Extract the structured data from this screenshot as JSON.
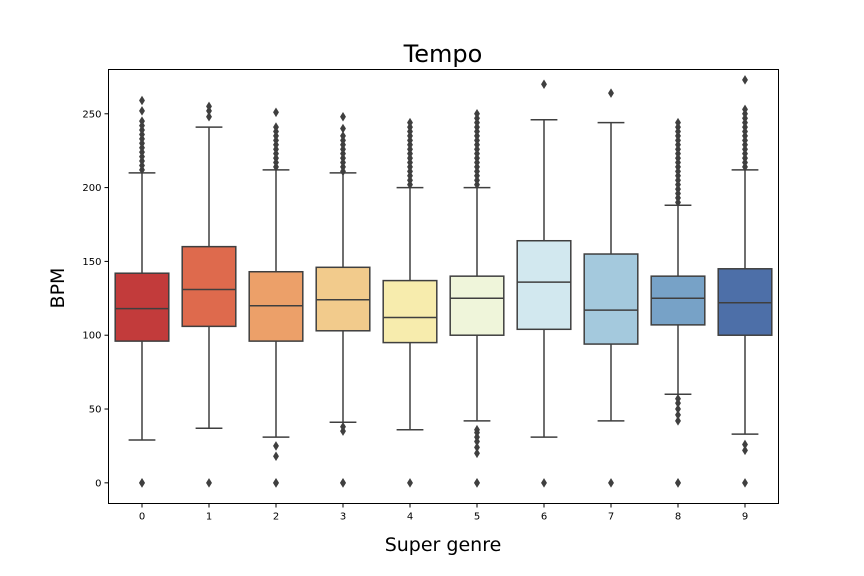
{
  "chart_data": {
    "type": "box",
    "title": "Tempo",
    "xlabel": "Super genre",
    "ylabel": "BPM",
    "ylim": [
      -14,
      280
    ],
    "yticks": [
      0,
      50,
      100,
      150,
      200,
      250
    ],
    "grid": false,
    "legend": "none",
    "categories": [
      "0",
      "1",
      "2",
      "3",
      "4",
      "5",
      "6",
      "7",
      "8",
      "9"
    ],
    "boxes": [
      {
        "category": "0",
        "color": "#c23b3b",
        "whislo": 29,
        "q1": 96,
        "med": 118,
        "q3": 142,
        "whishi": 210,
        "fliers": [
          0,
          0,
          212,
          215,
          218,
          221,
          224,
          227,
          230,
          233,
          236,
          239,
          242,
          245,
          252,
          259
        ]
      },
      {
        "category": "1",
        "color": "#de6a4d",
        "whislo": 37,
        "q1": 106,
        "med": 131,
        "q3": 160,
        "whishi": 241,
        "fliers": [
          0,
          248,
          252,
          255
        ]
      },
      {
        "category": "2",
        "color": "#eca069",
        "whislo": 31,
        "q1": 96,
        "med": 120,
        "q3": 143,
        "whishi": 212,
        "fliers": [
          0,
          0,
          18,
          25,
          214,
          217,
          220,
          223,
          226,
          229,
          232,
          235,
          238,
          241,
          251
        ]
      },
      {
        "category": "3",
        "color": "#f2cb8c",
        "whislo": 41,
        "q1": 103,
        "med": 124,
        "q3": 146,
        "whishi": 210,
        "fliers": [
          0,
          0,
          35,
          38,
          211,
          214,
          217,
          220,
          223,
          226,
          229,
          232,
          235,
          240,
          248
        ]
      },
      {
        "category": "4",
        "color": "#f7ecad",
        "whislo": 36,
        "q1": 95,
        "med": 112,
        "q3": 137,
        "whishi": 200,
        "fliers": [
          0,
          202,
          205,
          208,
          211,
          214,
          217,
          220,
          223,
          226,
          229,
          232,
          235,
          238,
          241,
          244
        ]
      },
      {
        "category": "5",
        "color": "#eff5da",
        "whislo": 42,
        "q1": 100,
        "med": 125,
        "q3": 140,
        "whishi": 200,
        "fliers": [
          0,
          0,
          20,
          24,
          28,
          31,
          34,
          36,
          202,
          205,
          208,
          211,
          214,
          217,
          220,
          223,
          226,
          229,
          232,
          235,
          238,
          241,
          244,
          247,
          250
        ]
      },
      {
        "category": "6",
        "color": "#d2e8ef",
        "whislo": 31,
        "q1": 104,
        "med": 136,
        "q3": 164,
        "whishi": 246,
        "fliers": [
          0,
          270
        ]
      },
      {
        "category": "7",
        "color": "#a4c9dd",
        "whislo": 42,
        "q1": 94,
        "med": 117,
        "q3": 155,
        "whishi": 244,
        "fliers": [
          0,
          264
        ]
      },
      {
        "category": "8",
        "color": "#77a2c7",
        "whislo": 60,
        "q1": 107,
        "med": 125,
        "q3": 140,
        "whishi": 188,
        "fliers": [
          0,
          0,
          42,
          46,
          50,
          54,
          57,
          190,
          193,
          196,
          199,
          202,
          205,
          208,
          211,
          214,
          217,
          220,
          223,
          226,
          229,
          232,
          235,
          238,
          241,
          244
        ]
      },
      {
        "category": "9",
        "color": "#4d6fa8",
        "whislo": 33,
        "q1": 100,
        "med": 122,
        "q3": 145,
        "whishi": 212,
        "fliers": [
          0,
          22,
          26,
          214,
          217,
          220,
          223,
          226,
          229,
          232,
          235,
          238,
          241,
          244,
          247,
          250,
          253,
          273
        ]
      }
    ],
    "line_color": "#3f3f3f"
  }
}
